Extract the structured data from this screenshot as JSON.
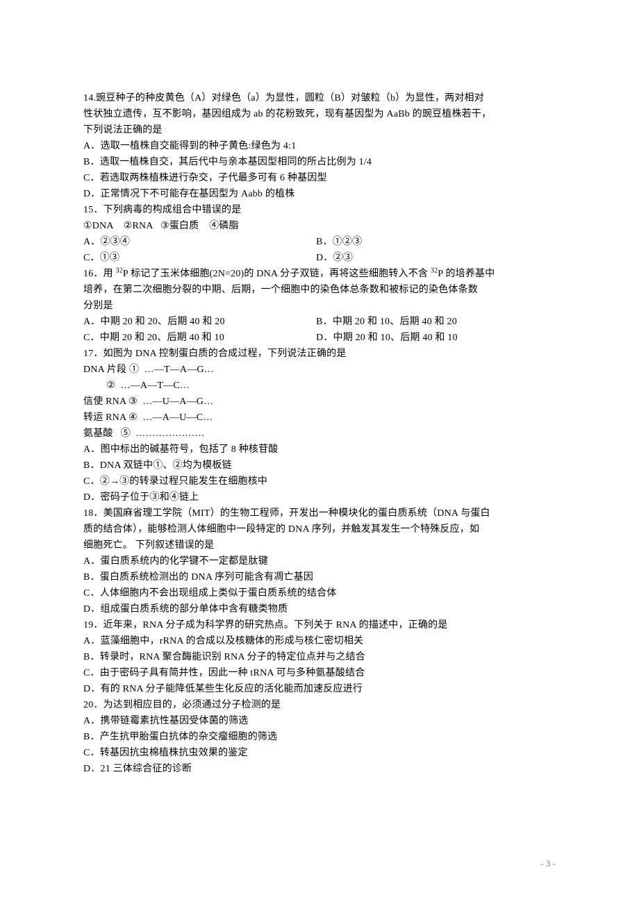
{
  "q14": {
    "stem1": "14.豌豆种子的种皮黄色（A）对绿色（a）为显性，圆粒（B）对皱粒（b）为显性，两对相对",
    "stem2": "性状独立遗传，互不影响，基因组成为 ab 的花粉致死，现有基因型为 AaBb 的豌豆植株若干，",
    "stem3": "下列说法正确的是",
    "a": "A．选取一植株自交能得到的种子黄色:绿色为 4:1",
    "b": "B．选取一植株自交，其后代中与亲本基因型相同的所占比例为 1/4",
    "c": "C．若选取两株植株进行杂交，子代最多可有 6 种基因型",
    "d": "D．正常情况下不可能存在基因型为 Aabb 的植株"
  },
  "q15": {
    "stem": "15．下列病毒的构成组合中错误的是",
    "items": "①DNA    ②RNA   ③蛋白质    ④磷脂",
    "a": "A．②③④",
    "b": "B．①②③",
    "c": "C．①③",
    "d": "D．②③"
  },
  "q16": {
    "stem1_pre": "16．用 ",
    "stem1_sup1": "32",
    "stem1_mid1": "P 标记了玉米体细胞(2N=20)的 DNA 分子双链，再将这些细胞转入不含 ",
    "stem1_sup2": "32",
    "stem1_post": "P 的培养基中",
    "stem2": "培养，在第二次细胞分裂的中期、后期，一个细胞中的染色体总条数和被标记的染色体条数",
    "stem3": "分别是",
    "a": "A．中期 20 和 20、后期 40 和 20",
    "b": "B．中期 20 和 10、后期 40 和 20",
    "c": "C．中期 20 和 20、后期 40 和 10",
    "d": "D．中期 20 和 10、后期 40 和 10"
  },
  "q17": {
    "stem": "17．如图为 DNA 控制蛋白质的合成过程，下列说法正确的是",
    "l1": "DNA 片段 ①  …—T—A—G…",
    "l2": "         ②  …—A—T—C…",
    "l3": "信使 RNA ③  …—U—A—G…",
    "l4": "转运 RNA ④  …—A—U—C…",
    "l5": "氨基酸   ⑤  …………………",
    "a": "A．图中标出的碱基符号，包括了 8 种核苷酸",
    "b": "B．DNA 双链中①、②均为模板链",
    "c": "C．②→③的转录过程只能发生在细胞核中",
    "d": "D．密码子位于③和④链上"
  },
  "q18": {
    "stem1": "18．美国麻省理工学院（MIT）的生物工程师，开发出一种模块化的蛋白质系统（DNA 与蛋白",
    "stem2": "质的结合体），能够检测人体细胞中一段特定的 DNA 序列，并触发其发生一个特殊反应，如",
    "stem3": "细胞死亡。 下列叙述错误的是",
    "a": "A．蛋白质系统内的化学键不一定都是肽键",
    "b": "B．蛋白质系统检测出的 DNA 序列可能含有凋亡基因",
    "c": "C．人体细胞内不会出现组成上类似于蛋白质系统的结合体",
    "d": "D．组成蛋白质系统的部分单体中含有糖类物质"
  },
  "q19": {
    "stem": "19．近年来，RNA 分子成为科学界的研究热点。下列关于 RNA 的描述中，正确的是",
    "a": "A．蓝藻细胞中，rRNA 的合成以及核糖体的形成与核仁密切相关",
    "b": "B．转录时，RNA 聚合酶能识别 RNA 分子的特定位点并与之结合",
    "c": "C．由于密码子具有简并性，因此一种 tRNA 可与多种氨基酸结合",
    "d": "D．有的 RNA 分子能降低某些生化反应的活化能而加速反应进行"
  },
  "q20": {
    "stem": "20．为达到相应目的，必须通过分子检测的是",
    "a": "A．携带链霉素抗性基因受体菌的筛选",
    "b": "B．产生抗甲胎蛋白抗体的杂交瘤细胞的筛选",
    "c": "C．转基因抗虫棉植株抗虫效果的鉴定",
    "d": "D．21 三体综合征的诊断"
  },
  "pagenum": "- 3 -"
}
